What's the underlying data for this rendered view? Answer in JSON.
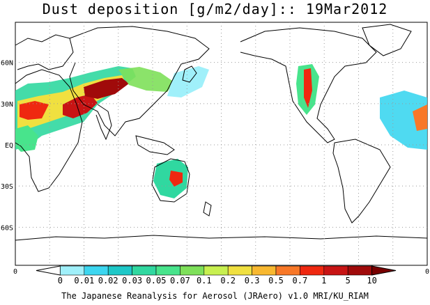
{
  "title": "Dust deposition [g/m2/day]:: 19Mar2012",
  "footer": "The Japanese Reanalysis for Aerosol (JRAero) v1.0 MRI/KU_RIAM",
  "map": {
    "lat_labels": [
      "60N",
      "30N",
      "EQ",
      "30S",
      "60S"
    ],
    "lat_values": [
      60,
      30,
      0,
      -30,
      -60
    ],
    "bottom_axis_labels": [
      "0",
      "0"
    ],
    "land_color": "#ffffff",
    "grid_style": "dotted"
  },
  "colorbar": {
    "labels": [
      "0",
      "0.01",
      "0.02",
      "0.03",
      "0.05",
      "0.07",
      "0.1",
      "0.2",
      "0.3",
      "0.5",
      "0.7",
      "1",
      "5",
      "10"
    ],
    "colors": [
      "#ffffff",
      "#a0f0fa",
      "#3cd6f0",
      "#1ec8c8",
      "#30d8a0",
      "#48e48c",
      "#7ee05a",
      "#c8f050",
      "#f0e040",
      "#f8b830",
      "#f87828",
      "#ef2810",
      "#c81414",
      "#a00a0a",
      "#780000"
    ]
  },
  "dust_regions": [
    {
      "region": "Sahara / Arabia / Central Asia",
      "max_level": "10"
    },
    {
      "region": "Gobi / East Asia",
      "max_level": "5"
    },
    {
      "region": "Australia",
      "max_level": "1"
    },
    {
      "region": "North America",
      "max_level": "1"
    },
    {
      "region": "West Africa",
      "max_level": "1"
    }
  ]
}
